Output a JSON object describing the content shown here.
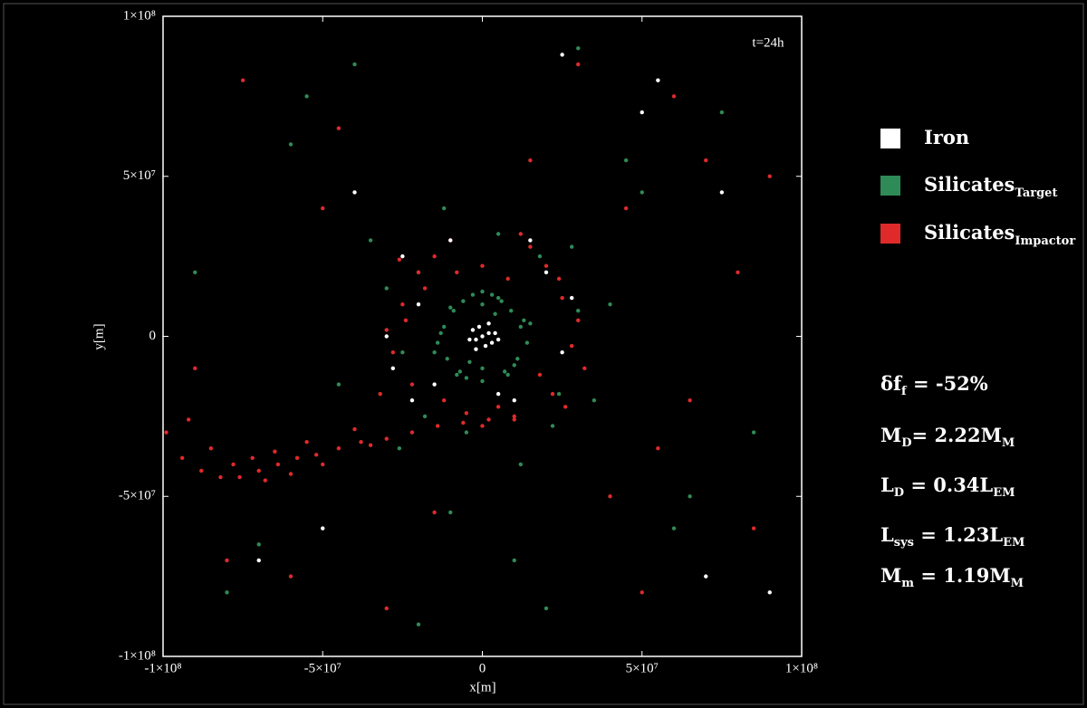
{
  "chart_data": {
    "type": "scatter",
    "xlabel": "x[m]",
    "ylabel": "y[m]",
    "annotation": "t=24h",
    "xlim": [
      -100000000.0,
      100000000.0
    ],
    "ylim": [
      -100000000.0,
      100000000.0
    ],
    "xticks": [
      {
        "value": -100000000.0,
        "label": "-1×10⁸"
      },
      {
        "value": -50000000.0,
        "label": "-5×10⁷"
      },
      0,
      {
        "value": 50000000.0,
        "label": "5×10⁷"
      },
      {
        "value": 100000000.0,
        "label": "1×10⁸"
      }
    ],
    "yticks": [
      {
        "value": -100000000.0,
        "label": "-1×10⁸"
      },
      {
        "value": -50000000.0,
        "label": "-5×10⁷"
      },
      0,
      {
        "value": 50000000.0,
        "label": "5×10⁷"
      },
      {
        "value": 100000000.0,
        "label": "1×10⁸"
      }
    ],
    "series": [
      {
        "name": "Silicates",
        "subscript": "Target",
        "color": "#2e8b57",
        "x": [
          -12000000.0,
          -9000000.0,
          -6000000.0,
          -3000000.0,
          0,
          3000000.0,
          6000000.0,
          9000000.0,
          12000000.0,
          -14000000.0,
          -11000000.0,
          -7000000.0,
          7000000.0,
          11000000.0,
          14000000.0,
          -13000000.0,
          -8000000.0,
          0,
          8000000.0,
          13000000.0,
          -10000000.0,
          -5000000.0,
          5000000.0,
          10000000.0,
          -4000000.0,
          4000000.0,
          -15000000.0,
          15000000.0,
          0,
          0,
          -20000000.0,
          -25000000.0,
          18000000.0,
          24000000.0,
          30000000.0,
          -30000000.0,
          22000000.0,
          -18000000.0,
          5000000.0,
          -5000000.0,
          35000000.0,
          -35000000.0,
          28000000.0,
          -26000000.0,
          12000000.0,
          -12000000.0,
          40000000.0,
          -45000000.0,
          60000000.0,
          -60000000.0,
          75000000.0,
          -80000000.0,
          50000000.0,
          -55000000.0,
          85000000.0,
          -90000000.0,
          20000000.0,
          -20000000.0,
          65000000.0,
          -70000000.0,
          30000000.0,
          -40000000.0,
          45000000.0,
          10000000.0,
          -10000000.0
        ],
        "values": [
          3000000.0,
          8000000.0,
          11000000.0,
          13000000.0,
          14000000.0,
          13000000.0,
          11000000.0,
          8000000.0,
          3000000.0,
          -2000000.0,
          -7000000.0,
          -11000000.0,
          -11000000.0,
          -7000000.0,
          -2000000.0,
          1000000.0,
          -12000000.0,
          -14000000.0,
          -12000000.0,
          5000000.0,
          9000000.0,
          -13000000.0,
          12000000.0,
          -9000000.0,
          -8000000.0,
          7000000.0,
          -5000000.0,
          4000000.0,
          -10000000.0,
          10000000.0,
          20000000.0,
          -5000000.0,
          25000000.0,
          -18000000.0,
          8000000.0,
          15000000.0,
          -28000000.0,
          -25000000.0,
          32000000.0,
          -30000000.0,
          -20000000.0,
          30000000.0,
          28000000.0,
          -35000000.0,
          -40000000.0,
          40000000.0,
          10000000.0,
          -15000000.0,
          -60000000.0,
          60000000.0,
          70000000.0,
          -80000000.0,
          45000000.0,
          75000000.0,
          -30000000.0,
          20000000.0,
          -85000000.0,
          -90000000.0,
          -50000000.0,
          -65000000.0,
          90000000.0,
          85000000.0,
          55000000.0,
          -70000000.0,
          -55000000.0
        ]
      },
      {
        "name": "Silicates",
        "subscript": "Impactor",
        "color": "#e02a2a",
        "x": [
          -20000000.0,
          -15000000.0,
          -25000000.0,
          -28000000.0,
          -22000000.0,
          -10000000.0,
          15000000.0,
          20000000.0,
          25000000.0,
          28000000.0,
          22000000.0,
          10000000.0,
          -5000000.0,
          5000000.0,
          0,
          18000000.0,
          -18000000.0,
          30000000.0,
          -30000000.0,
          -24000000.0,
          24000000.0,
          12000000.0,
          -12000000.0,
          0,
          32000000.0,
          -32000000.0,
          8000000.0,
          -8000000.0,
          26000000.0,
          -26000000.0,
          10000000.0,
          2000000.0,
          -6000000.0,
          -14000000.0,
          -22000000.0,
          -30000000.0,
          -38000000.0,
          -45000000.0,
          -52000000.0,
          -58000000.0,
          -64000000.0,
          -70000000.0,
          -76000000.0,
          -82000000.0,
          -88000000.0,
          -94000000.0,
          -99000000.0,
          -55000000.0,
          -50000000.0,
          -60000000.0,
          -68000000.0,
          -72000000.0,
          -78000000.0,
          -40000000.0,
          -35000000.0,
          -85000000.0,
          -92000000.0,
          -65000000.0,
          45000000.0,
          55000000.0,
          70000000.0,
          85000000.0,
          -45000000.0,
          -60000000.0,
          -75000000.0,
          -90000000.0,
          40000000.0,
          60000000.0,
          80000000.0,
          -30000000.0,
          30000000.0,
          50000000.0,
          -50000000.0,
          15000000.0,
          -15000000.0,
          65000000.0,
          90000000.0,
          -80000000.0
        ],
        "values": [
          20000000.0,
          25000000.0,
          10000000.0,
          -5000000.0,
          -15000000.0,
          30000000.0,
          28000000.0,
          22000000.0,
          12000000.0,
          -3000000.0,
          -18000000.0,
          -26000000.0,
          -24000000.0,
          -22000000.0,
          22000000.0,
          -12000000.0,
          15000000.0,
          5000000.0,
          2000000.0,
          5000000.0,
          18000000.0,
          32000000.0,
          -20000000.0,
          -28000000.0,
          -10000000.0,
          -18000000.0,
          18000000.0,
          20000000.0,
          -22000000.0,
          24000000.0,
          -25000000.0,
          -26000000.0,
          -27000000.0,
          -28000000.0,
          -30000000.0,
          -32000000.0,
          -33000000.0,
          -35000000.0,
          -37000000.0,
          -38000000.0,
          -40000000.0,
          -42000000.0,
          -44000000.0,
          -44000000.0,
          -42000000.0,
          -38000000.0,
          -30000000.0,
          -33000000.0,
          -40000000.0,
          -43000000.0,
          -45000000.0,
          -38000000.0,
          -40000000.0,
          -29000000.0,
          -34000000.0,
          -35000000.0,
          -26000000.0,
          -36000000.0,
          40000000.0,
          -35000000.0,
          55000000.0,
          -60000000.0,
          65000000.0,
          -75000000.0,
          80000000.0,
          -10000000.0,
          -50000000.0,
          75000000.0,
          20000000.0,
          -85000000.0,
          85000000.0,
          -80000000.0,
          40000000.0,
          55000000.0,
          -55000000.0,
          -20000000.0,
          50000000.0,
          -70000000.0
        ]
      },
      {
        "name": "Iron",
        "color": "#ffffff",
        "x": [
          0,
          2000000.0,
          -2000000.0,
          3000000.0,
          -3000000.0,
          1000000.0,
          -1000000.0,
          4000000.0,
          -4000000.0,
          2000000.0,
          -2000000.0,
          5000000.0,
          -25000000.0,
          -20000000.0,
          -28000000.0,
          -15000000.0,
          20000000.0,
          25000000.0,
          10000000.0,
          -10000000.0,
          15000000.0,
          -30000000.0,
          28000000.0,
          5000000.0,
          -22000000.0,
          50000000.0,
          55000000.0,
          75000000.0,
          -50000000.0,
          -70000000.0,
          90000000.0,
          -40000000.0,
          25000000.0,
          70000000.0
        ],
        "values": [
          0,
          1000000.0,
          -1000000.0,
          -2000000.0,
          2000000.0,
          -3000000.0,
          3000000.0,
          1000000.0,
          -1000000.0,
          4000000.0,
          -4000000.0,
          -1000000.0,
          25000000.0,
          10000000.0,
          -10000000.0,
          -15000000.0,
          20000000.0,
          -5000000.0,
          -20000000.0,
          30000000.0,
          30000000.0,
          0,
          12000000.0,
          -18000000.0,
          -20000000.0,
          70000000.0,
          80000000.0,
          45000000.0,
          -60000000.0,
          -70000000.0,
          -80000000.0,
          45000000.0,
          88000000.0,
          -75000000.0
        ]
      }
    ],
    "legend": "right",
    "stats": [
      [
        {
          "t": "δf"
        },
        {
          "t": "f",
          "sub": true
        },
        {
          "t": " = -52%"
        }
      ],
      [
        {
          "t": "M"
        },
        {
          "t": "D",
          "sub": true
        },
        {
          "t": "= 2.22M"
        },
        {
          "t": "M",
          "sub": true
        }
      ],
      [
        {
          "t": "L"
        },
        {
          "t": "D",
          "sub": true
        },
        {
          "t": " = 0.34L"
        },
        {
          "t": "EM",
          "sub": true
        }
      ],
      [
        {
          "t": "L"
        },
        {
          "t": "sys",
          "sub": true
        },
        {
          "t": " = 1.23L"
        },
        {
          "t": "EM",
          "sub": true
        }
      ],
      [
        {
          "t": "M"
        },
        {
          "t": "m",
          "sub": true
        },
        {
          "t": " = 1.19M"
        },
        {
          "t": "M",
          "sub": true
        }
      ]
    ]
  }
}
